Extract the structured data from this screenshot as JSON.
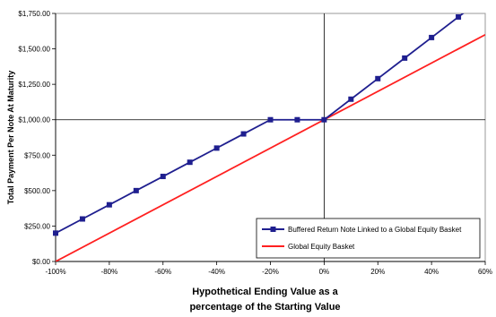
{
  "chart_data": {
    "type": "line",
    "title": "",
    "xlabel_line1": "Hypothetical Ending Value as a",
    "xlabel_line2": "percentage of the Starting Value",
    "ylabel": "Total Payment Per Note At Maturity",
    "xlim": [
      -100,
      60
    ],
    "ylim": [
      0,
      1750
    ],
    "x_ticks": [
      "-100%",
      "-80%",
      "-60%",
      "-40%",
      "-20%",
      "0%",
      "20%",
      "40%",
      "60%"
    ],
    "x_tick_values": [
      -100,
      -80,
      -60,
      -40,
      -20,
      0,
      20,
      40,
      60
    ],
    "y_ticks": [
      "$0.00",
      "$250.00",
      "$500.00",
      "$750.00",
      "$1,000.00",
      "$1,250.00",
      "$1,500.00",
      "$1,750.00"
    ],
    "y_tick_values": [
      0,
      250,
      500,
      750,
      1000,
      1250,
      1500,
      1750
    ],
    "reference_line_y": 1000,
    "legend_position": "bottom-right",
    "series": [
      {
        "name": "Buffered Return Note Linked to a Global Equity Basket",
        "color": "#1f1f8f",
        "marker": "square",
        "x": [
          -100,
          -90,
          -80,
          -70,
          -60,
          -50,
          -40,
          -30,
          -20,
          -10,
          0,
          10,
          20,
          30,
          40,
          50,
          55
        ],
        "y": [
          200,
          300,
          400,
          500,
          600,
          700,
          800,
          900,
          1000,
          1000,
          1000,
          1145,
          1290,
          1435,
          1580,
          1725,
          1798
        ],
        "markers_x": [
          -100,
          -90,
          -80,
          -70,
          -60,
          -50,
          -40,
          -30,
          -20,
          -10,
          0,
          10,
          20,
          30,
          40,
          50
        ]
      },
      {
        "name": "Global Equity Basket",
        "color": "#ff2020",
        "marker": "none",
        "x": [
          -100,
          60
        ],
        "y": [
          0,
          1600
        ]
      }
    ]
  }
}
